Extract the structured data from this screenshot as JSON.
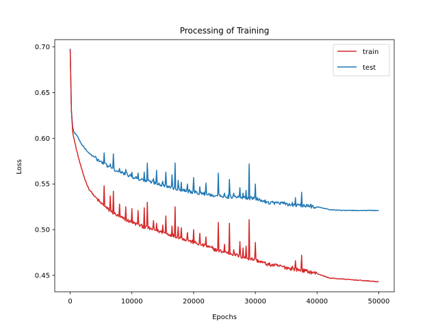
{
  "chart_data": {
    "type": "line",
    "title": "Processing of Training",
    "xlabel": "Epochs",
    "ylabel": "Loss",
    "xlim": [
      -2500,
      52500
    ],
    "ylim": [
      0.432,
      0.708
    ],
    "x_ticks": [
      0,
      10000,
      20000,
      30000,
      40000,
      50000
    ],
    "x_tick_labels": [
      "0",
      "10000",
      "20000",
      "30000",
      "40000",
      "50000"
    ],
    "y_ticks": [
      0.45,
      0.5,
      0.55,
      0.6,
      0.65,
      0.7
    ],
    "y_tick_labels": [
      "0.45",
      "0.50",
      "0.55",
      "0.60",
      "0.65",
      "0.70"
    ],
    "grid": false,
    "legend_position": "top-right",
    "series": [
      {
        "name": "train",
        "color": "#d62728",
        "x": [
          0,
          200,
          400,
          600,
          1000,
          1500,
          2000,
          2500,
          3000,
          4000,
          5000,
          6000,
          7000,
          8000,
          9000,
          10000,
          12000,
          14000,
          16000,
          18000,
          20000,
          22000,
          24000,
          26000,
          28000,
          30000,
          32000,
          34000,
          36000,
          38000,
          40000,
          42000,
          44000,
          46000,
          48000,
          50000
        ],
        "values": [
          0.698,
          0.63,
          0.607,
          0.6,
          0.588,
          0.575,
          0.563,
          0.553,
          0.545,
          0.536,
          0.529,
          0.523,
          0.518,
          0.514,
          0.511,
          0.508,
          0.503,
          0.499,
          0.495,
          0.491,
          0.486,
          0.482,
          0.477,
          0.474,
          0.47,
          0.467,
          0.462,
          0.46,
          0.457,
          0.455,
          0.452,
          0.447,
          0.446,
          0.445,
          0.444,
          0.443
        ],
        "spikes": [
          [
            5500,
            0.548
          ],
          [
            6500,
            0.537
          ],
          [
            7000,
            0.542
          ],
          [
            8000,
            0.528
          ],
          [
            9000,
            0.525
          ],
          [
            10000,
            0.523
          ],
          [
            11000,
            0.521
          ],
          [
            12000,
            0.524
          ],
          [
            12500,
            0.53
          ],
          [
            13500,
            0.51
          ],
          [
            14000,
            0.507
          ],
          [
            15000,
            0.505
          ],
          [
            15500,
            0.515
          ],
          [
            16500,
            0.504
          ],
          [
            17000,
            0.525
          ],
          [
            17500,
            0.503
          ],
          [
            18000,
            0.502
          ],
          [
            19000,
            0.497
          ],
          [
            20000,
            0.5
          ],
          [
            21000,
            0.496
          ],
          [
            22000,
            0.492
          ],
          [
            23000,
            0.482
          ],
          [
            24000,
            0.508
          ],
          [
            25000,
            0.484
          ],
          [
            25800,
            0.507
          ],
          [
            26500,
            0.478
          ],
          [
            27500,
            0.487
          ],
          [
            28000,
            0.48
          ],
          [
            28500,
            0.482
          ],
          [
            29000,
            0.511
          ],
          [
            30000,
            0.486
          ],
          [
            33000,
            0.46
          ],
          [
            35000,
            0.459
          ],
          [
            36000,
            0.46
          ],
          [
            36500,
            0.466
          ],
          [
            37500,
            0.472
          ],
          [
            39000,
            0.455
          ]
        ]
      },
      {
        "name": "test",
        "color": "#1f77b4",
        "x": [
          0,
          200,
          400,
          600,
          1000,
          1500,
          2000,
          2500,
          3000,
          4000,
          5000,
          6000,
          7000,
          8000,
          9000,
          10000,
          12000,
          14000,
          16000,
          18000,
          20000,
          22000,
          24000,
          26000,
          28000,
          30000,
          32000,
          34000,
          36000,
          38000,
          40000,
          42000,
          44000,
          46000,
          48000,
          50000
        ],
        "values": [
          0.698,
          0.63,
          0.612,
          0.607,
          0.604,
          0.598,
          0.592,
          0.588,
          0.584,
          0.579,
          0.574,
          0.57,
          0.566,
          0.563,
          0.561,
          0.558,
          0.554,
          0.551,
          0.547,
          0.544,
          0.541,
          0.539,
          0.537,
          0.536,
          0.535,
          0.534,
          0.53,
          0.529,
          0.527,
          0.526,
          0.525,
          0.522,
          0.521,
          0.521,
          0.521,
          0.521
        ],
        "spikes": [
          [
            5500,
            0.584
          ],
          [
            6500,
            0.572
          ],
          [
            7000,
            0.583
          ],
          [
            8000,
            0.567
          ],
          [
            9000,
            0.566
          ],
          [
            10000,
            0.563
          ],
          [
            11000,
            0.562
          ],
          [
            12000,
            0.563
          ],
          [
            12500,
            0.573
          ],
          [
            13500,
            0.556
          ],
          [
            14000,
            0.565
          ],
          [
            15000,
            0.553
          ],
          [
            15500,
            0.563
          ],
          [
            16500,
            0.56
          ],
          [
            17000,
            0.573
          ],
          [
            17500,
            0.554
          ],
          [
            18000,
            0.552
          ],
          [
            19000,
            0.55
          ],
          [
            20000,
            0.557
          ],
          [
            21000,
            0.547
          ],
          [
            22000,
            0.551
          ],
          [
            23000,
            0.538
          ],
          [
            24000,
            0.562
          ],
          [
            25000,
            0.54
          ],
          [
            25800,
            0.555
          ],
          [
            26500,
            0.54
          ],
          [
            27500,
            0.546
          ],
          [
            28000,
            0.54
          ],
          [
            28500,
            0.543
          ],
          [
            29000,
            0.572
          ],
          [
            30000,
            0.55
          ],
          [
            33000,
            0.53
          ],
          [
            35000,
            0.529
          ],
          [
            36000,
            0.53
          ],
          [
            36500,
            0.535
          ],
          [
            37500,
            0.541
          ],
          [
            39000,
            0.528
          ]
        ]
      }
    ]
  }
}
